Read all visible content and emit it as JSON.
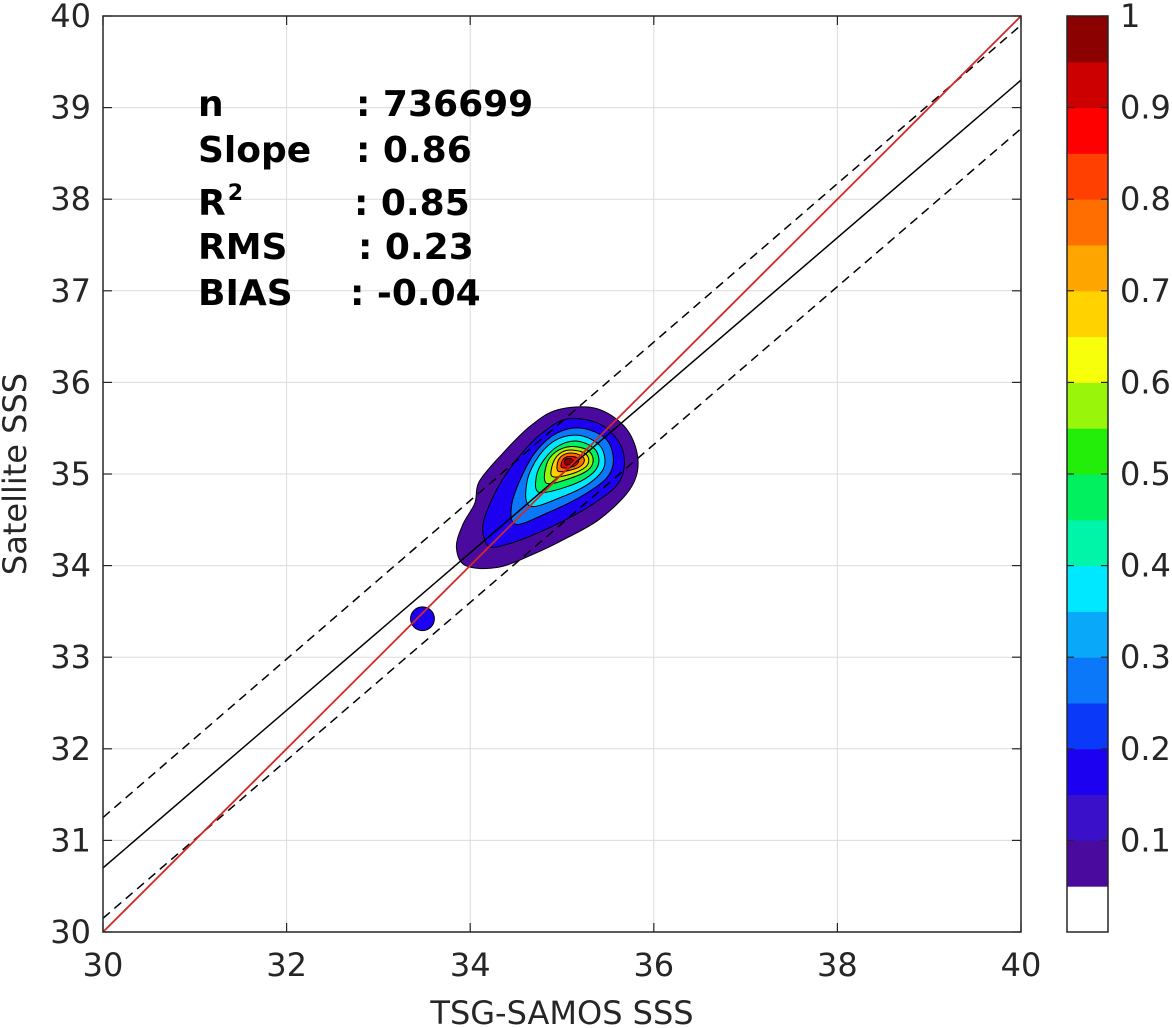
{
  "chart_data": {
    "type": "contour",
    "xlabel": "TSG-SAMOS SSS",
    "ylabel": "Satellite SSS",
    "xlim": [
      30,
      40
    ],
    "ylim": [
      30,
      40
    ],
    "xticks": [
      "30",
      "32",
      "34",
      "36",
      "38",
      "40"
    ],
    "yticks": [
      "30",
      "31",
      "32",
      "33",
      "34",
      "35",
      "36",
      "37",
      "38",
      "39",
      "40"
    ],
    "grid": true,
    "stats": [
      {
        "label": "n",
        "value": ": 736699"
      },
      {
        "label": "Slope",
        "value": ": 0.86"
      },
      {
        "label": "R",
        "sup": "2",
        "value": ": 0.85"
      },
      {
        "label": "RMS",
        "value": ": 0.23"
      },
      {
        "label": "BIAS",
        "value": ": -0.04"
      }
    ],
    "lines": {
      "one_to_one": {
        "x": [
          30,
          40
        ],
        "y": [
          30,
          40
        ],
        "color": "#d62728"
      },
      "regression": {
        "x": [
          30,
          40
        ],
        "y": [
          30.7,
          39.3
        ],
        "color": "#000000"
      },
      "upper_bound": {
        "x": [
          30,
          40
        ],
        "y": [
          31.25,
          39.9
        ],
        "style": "dashed"
      },
      "lower_bound": {
        "x": [
          30,
          40
        ],
        "y": [
          30.15,
          38.77
        ],
        "style": "dashed"
      }
    },
    "density": {
      "main_center": [
        35.1,
        35.1
      ],
      "main_contours": [
        {
          "level": 0.05,
          "polygon": [
            [
              33.95,
              34.0
            ],
            [
              34.3,
              33.98
            ],
            [
              34.7,
              34.13
            ],
            [
              35.05,
              34.3
            ],
            [
              35.4,
              34.5
            ],
            [
              35.7,
              34.78
            ],
            [
              35.82,
              35.02
            ],
            [
              35.8,
              35.3
            ],
            [
              35.65,
              35.55
            ],
            [
              35.35,
              35.72
            ],
            [
              34.95,
              35.7
            ],
            [
              34.65,
              35.52
            ],
            [
              34.35,
              35.22
            ],
            [
              34.1,
              34.92
            ],
            [
              34.05,
              34.68
            ],
            [
              33.92,
              34.45
            ],
            [
              33.85,
              34.2
            ]
          ]
        },
        {
          "level": 0.15,
          "polygon": [
            [
              34.25,
              34.2
            ],
            [
              34.6,
              34.3
            ],
            [
              35.0,
              34.48
            ],
            [
              35.35,
              34.68
            ],
            [
              35.6,
              34.88
            ],
            [
              35.68,
              35.1
            ],
            [
              35.62,
              35.35
            ],
            [
              35.4,
              35.55
            ],
            [
              35.05,
              35.6
            ],
            [
              34.75,
              35.42
            ],
            [
              34.5,
              35.15
            ],
            [
              34.3,
              34.85
            ],
            [
              34.15,
              34.5
            ],
            [
              34.15,
              34.3
            ]
          ]
        },
        {
          "level": 0.25,
          "polygon": [
            [
              34.5,
              34.45
            ],
            [
              34.85,
              34.58
            ],
            [
              35.2,
              34.75
            ],
            [
              35.48,
              34.95
            ],
            [
              35.56,
              35.15
            ],
            [
              35.48,
              35.38
            ],
            [
              35.22,
              35.5
            ],
            [
              34.95,
              35.45
            ],
            [
              34.72,
              35.25
            ],
            [
              34.55,
              34.95
            ],
            [
              34.45,
              34.65
            ]
          ]
        },
        {
          "level": 0.35,
          "polygon": [
            [
              34.65,
              34.65
            ],
            [
              35.0,
              34.75
            ],
            [
              35.3,
              34.9
            ],
            [
              35.46,
              35.08
            ],
            [
              35.42,
              35.3
            ],
            [
              35.2,
              35.42
            ],
            [
              34.95,
              35.38
            ],
            [
              34.75,
              35.2
            ],
            [
              34.62,
              34.92
            ]
          ]
        },
        {
          "level": 0.45,
          "polygon": [
            [
              34.75,
              34.8
            ],
            [
              35.05,
              34.86
            ],
            [
              35.3,
              34.98
            ],
            [
              35.4,
              35.12
            ],
            [
              35.35,
              35.28
            ],
            [
              35.15,
              35.36
            ],
            [
              34.95,
              35.3
            ],
            [
              34.8,
              35.15
            ],
            [
              34.72,
              34.97
            ]
          ]
        },
        {
          "level": 0.55,
          "polygon": [
            [
              34.83,
              34.9
            ],
            [
              35.08,
              34.95
            ],
            [
              35.28,
              35.04
            ],
            [
              35.34,
              35.15
            ],
            [
              35.28,
              35.26
            ],
            [
              35.1,
              35.3
            ],
            [
              34.93,
              35.24
            ],
            [
              34.83,
              35.1
            ]
          ]
        },
        {
          "level": 0.65,
          "polygon": [
            [
              34.9,
              34.97
            ],
            [
              35.1,
              35.0
            ],
            [
              35.26,
              35.08
            ],
            [
              35.29,
              35.17
            ],
            [
              35.22,
              35.24
            ],
            [
              35.06,
              35.26
            ],
            [
              34.95,
              35.2
            ],
            [
              34.89,
              35.08
            ]
          ]
        },
        {
          "level": 0.75,
          "polygon": [
            [
              34.96,
              35.03
            ],
            [
              35.12,
              35.05
            ],
            [
              35.22,
              35.1
            ],
            [
              35.24,
              35.17
            ],
            [
              35.16,
              35.22
            ],
            [
              35.04,
              35.22
            ],
            [
              34.96,
              35.15
            ]
          ]
        },
        {
          "level": 0.85,
          "polygon": [
            [
              35.0,
              35.07
            ],
            [
              35.12,
              35.08
            ],
            [
              35.18,
              35.13
            ],
            [
              35.16,
              35.18
            ],
            [
              35.06,
              35.19
            ],
            [
              35.0,
              35.14
            ]
          ]
        },
        {
          "level": 0.95,
          "polygon": [
            [
              35.04,
              35.1
            ],
            [
              35.11,
              35.11
            ],
            [
              35.13,
              35.14
            ],
            [
              35.08,
              35.17
            ],
            [
              35.03,
              35.15
            ]
          ]
        }
      ],
      "small_blob": {
        "center": [
          33.48,
          33.42
        ],
        "rx": 0.13,
        "ry": 0.13,
        "level": 0.15
      }
    },
    "colorbar": {
      "ticks": [
        "0.1",
        "0.2",
        "0.3",
        "0.4",
        "0.5",
        "0.6",
        "0.7",
        "0.8",
        "0.9",
        "1"
      ],
      "levels": [
        {
          "from": 0.0,
          "to": 0.05,
          "color": "#ffffff"
        },
        {
          "from": 0.05,
          "to": 0.1,
          "color": "#4a0a9e"
        },
        {
          "from": 0.1,
          "to": 0.15,
          "color": "#3a10c9"
        },
        {
          "from": 0.15,
          "to": 0.2,
          "color": "#1c00f0"
        },
        {
          "from": 0.2,
          "to": 0.25,
          "color": "#0a3af8"
        },
        {
          "from": 0.25,
          "to": 0.3,
          "color": "#0a78f8"
        },
        {
          "from": 0.3,
          "to": 0.35,
          "color": "#0aa8f8"
        },
        {
          "from": 0.35,
          "to": 0.4,
          "color": "#00e8ff"
        },
        {
          "from": 0.4,
          "to": 0.45,
          "color": "#00f5a8"
        },
        {
          "from": 0.45,
          "to": 0.5,
          "color": "#00f060"
        },
        {
          "from": 0.5,
          "to": 0.55,
          "color": "#22ee0a"
        },
        {
          "from": 0.55,
          "to": 0.6,
          "color": "#99f50a"
        },
        {
          "from": 0.6,
          "to": 0.65,
          "color": "#f8ff0a"
        },
        {
          "from": 0.65,
          "to": 0.7,
          "color": "#ffd200"
        },
        {
          "from": 0.7,
          "to": 0.75,
          "color": "#ffa500"
        },
        {
          "from": 0.75,
          "to": 0.8,
          "color": "#ff6e00"
        },
        {
          "from": 0.8,
          "to": 0.85,
          "color": "#ff4000"
        },
        {
          "from": 0.85,
          "to": 0.9,
          "color": "#ff0000"
        },
        {
          "from": 0.9,
          "to": 0.95,
          "color": "#cc0000"
        },
        {
          "from": 0.95,
          "to": 1.0,
          "color": "#8b0000"
        }
      ]
    }
  }
}
